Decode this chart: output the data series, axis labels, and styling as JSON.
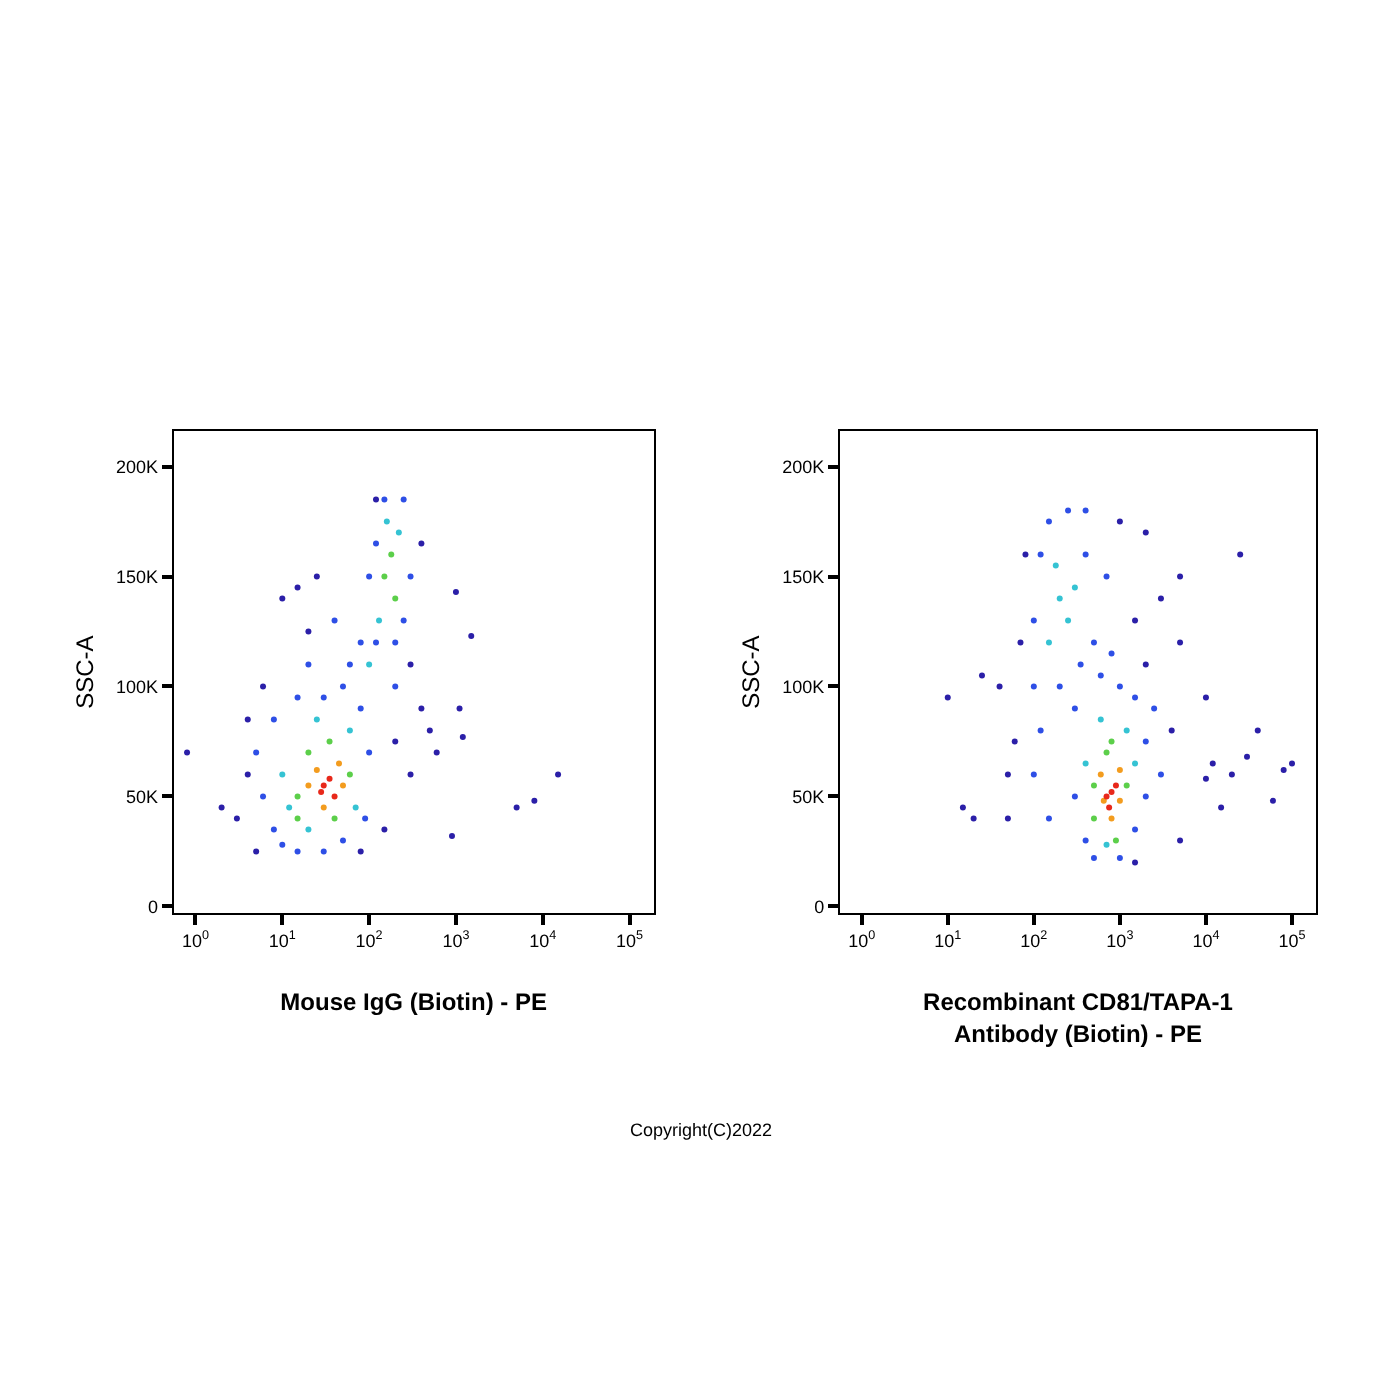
{
  "chart_data": [
    {
      "type": "scatter",
      "xlabel": "Mouse IgG (Biotin) - PE",
      "ylabel": "SSC-A",
      "log": "x",
      "marker": "circle",
      "xlim": [
        0.56,
        190000
      ],
      "ylim": [
        -3000,
        216000
      ],
      "xticks": [
        {
          "value": 1,
          "label": "10$^{0}$"
        },
        {
          "value": 10,
          "label": "10$^{1}$"
        },
        {
          "value": 100,
          "label": "10$^{2}$"
        },
        {
          "value": 1000,
          "label": "10$^{3}$"
        },
        {
          "value": 10000,
          "label": "10$^{4}$"
        },
        {
          "value": 100000,
          "label": "10$^{5}$"
        }
      ],
      "yticks": [
        0,
        {
          "value": 50000,
          "label": "50K"
        },
        {
          "value": 100000,
          "label": "100K"
        },
        {
          "value": 150000,
          "label": "150K"
        },
        {
          "value": 200000,
          "label": "200K"
        }
      ],
      "x": [
        3,
        4,
        2,
        4,
        6,
        10,
        15,
        25,
        20,
        120,
        400,
        300,
        400,
        500,
        600,
        200,
        300,
        150,
        80,
        5,
        1000,
        1500,
        1100,
        1200,
        900,
        5000,
        8000,
        15000,
        0.8,
        6,
        5,
        8,
        8,
        15,
        30,
        50,
        80,
        100,
        90,
        50,
        30,
        15,
        10,
        120,
        250,
        100,
        150,
        250,
        200,
        80,
        60,
        120,
        300,
        200,
        20,
        40,
        10,
        12,
        60,
        25,
        70,
        20,
        130,
        220,
        160,
        100,
        15,
        20,
        35,
        60,
        15,
        40,
        150,
        180,
        200,
        25,
        45,
        30,
        20,
        50,
        30,
        35,
        28,
        40
      ],
      "values": [
        40000,
        85000,
        45000,
        60000,
        100000,
        140000,
        145000,
        150000,
        125000,
        185000,
        165000,
        110000,
        90000,
        80000,
        70000,
        75000,
        60000,
        35000,
        25000,
        25000,
        143000,
        123000,
        90000,
        77000,
        32000,
        45000,
        48000,
        60000,
        70000,
        50000,
        70000,
        35000,
        85000,
        95000,
        95000,
        100000,
        90000,
        70000,
        40000,
        30000,
        25000,
        25000,
        28000,
        120000,
        130000,
        150000,
        185000,
        185000,
        100000,
        120000,
        110000,
        165000,
        150000,
        120000,
        110000,
        130000,
        60000,
        45000,
        80000,
        85000,
        45000,
        35000,
        130000,
        170000,
        175000,
        110000,
        50000,
        70000,
        75000,
        60000,
        40000,
        40000,
        150000,
        160000,
        140000,
        62000,
        65000,
        45000,
        55000,
        55000,
        55000,
        58000,
        52000,
        50000
      ],
      "colors": [
        "#2b1fa8",
        "#2b1fa8",
        "#2b1fa8",
        "#2b1fa8",
        "#2b1fa8",
        "#2b1fa8",
        "#2b1fa8",
        "#2b1fa8",
        "#2b1fa8",
        "#2b1fa8",
        "#2b1fa8",
        "#2b1fa8",
        "#2b1fa8",
        "#2b1fa8",
        "#2b1fa8",
        "#2b1fa8",
        "#2b1fa8",
        "#2b1fa8",
        "#2b1fa8",
        "#2b1fa8",
        "#2b1fa8",
        "#2b1fa8",
        "#2b1fa8",
        "#2b1fa8",
        "#2b1fa8",
        "#2b1fa8",
        "#2b1fa8",
        "#2b1fa8",
        "#2b1fa8",
        "#2e4fe6",
        "#2e4fe6",
        "#2e4fe6",
        "#2e4fe6",
        "#2e4fe6",
        "#2e4fe6",
        "#2e4fe6",
        "#2e4fe6",
        "#2e4fe6",
        "#2e4fe6",
        "#2e4fe6",
        "#2e4fe6",
        "#2e4fe6",
        "#2e4fe6",
        "#2e4fe6",
        "#2e4fe6",
        "#2e4fe6",
        "#2e4fe6",
        "#2e4fe6",
        "#2e4fe6",
        "#2e4fe6",
        "#2e4fe6",
        "#2e4fe6",
        "#2e4fe6",
        "#2e4fe6",
        "#2e4fe6",
        "#2e4fe6",
        "#35c3d3",
        "#35c3d3",
        "#35c3d3",
        "#35c3d3",
        "#35c3d3",
        "#35c3d3",
        "#35c3d3",
        "#35c3d3",
        "#35c3d3",
        "#35c3d3",
        "#5ccf4a",
        "#5ccf4a",
        "#5ccf4a",
        "#5ccf4a",
        "#5ccf4a",
        "#5ccf4a",
        "#5ccf4a",
        "#5ccf4a",
        "#5ccf4a",
        "#f39c1e",
        "#f39c1e",
        "#f39c1e",
        "#f39c1e",
        "#f39c1e",
        "#e8281a",
        "#e8281a",
        "#e8281a",
        "#e8281a"
      ]
    },
    {
      "type": "scatter",
      "xlabel": "Recombinant CD81/TAPA-1\nAntibody (Biotin) - PE",
      "ylabel": "SSC-A",
      "log": "x",
      "marker": "circle",
      "xlim": [
        0.56,
        190000
      ],
      "ylim": [
        -3000,
        216000
      ],
      "xticks": [
        {
          "value": 1,
          "label": "10$^{0}$"
        },
        {
          "value": 10,
          "label": "10$^{1}$"
        },
        {
          "value": 100,
          "label": "10$^{2}$"
        },
        {
          "value": 1000,
          "label": "10$^{3}$"
        },
        {
          "value": 10000,
          "label": "10$^{4}$"
        },
        {
          "value": 100000,
          "label": "10$^{5}$"
        }
      ],
      "yticks": [
        0,
        {
          "value": 50000,
          "label": "50K"
        },
        {
          "value": 100000,
          "label": "100K"
        },
        {
          "value": 150000,
          "label": "150K"
        },
        {
          "value": 200000,
          "label": "200K"
        }
      ],
      "annotations": [
        "Copyright(C)2022"
      ],
      "x": [
        15,
        20,
        10,
        25,
        10000,
        12000,
        20000,
        25000,
        40000,
        60000,
        80000,
        100000,
        15000,
        10000,
        30000,
        60,
        50,
        40,
        80,
        70,
        50,
        1500,
        2000,
        3000,
        5000,
        5000,
        4000,
        5000,
        2000,
        1000,
        1500,
        300,
        2000,
        400,
        1500,
        500,
        1000,
        2000,
        1500,
        300,
        100,
        120,
        150,
        250,
        400,
        500,
        350,
        200,
        100,
        700,
        400,
        600,
        800,
        1000,
        2500,
        3000,
        100,
        150,
        120,
        400,
        1500,
        600,
        1200,
        700,
        200,
        250,
        180,
        300,
        150,
        500,
        700,
        1200,
        500,
        900,
        800,
        600,
        1000,
        800,
        650,
        1000,
        800,
        700,
        900,
        750
      ],
      "values": [
        45000,
        40000,
        95000,
        105000,
        95000,
        65000,
        60000,
        160000,
        80000,
        48000,
        62000,
        65000,
        45000,
        58000,
        68000,
        75000,
        60000,
        100000,
        160000,
        120000,
        40000,
        130000,
        110000,
        140000,
        150000,
        120000,
        80000,
        30000,
        170000,
        175000,
        20000,
        50000,
        50000,
        30000,
        35000,
        22000,
        22000,
        75000,
        95000,
        90000,
        130000,
        160000,
        175000,
        180000,
        160000,
        120000,
        110000,
        100000,
        100000,
        150000,
        180000,
        105000,
        115000,
        100000,
        90000,
        60000,
        60000,
        40000,
        80000,
        65000,
        65000,
        85000,
        80000,
        28000,
        140000,
        130000,
        155000,
        145000,
        120000,
        55000,
        70000,
        55000,
        40000,
        30000,
        75000,
        60000,
        62000,
        40000,
        48000,
        48000,
        52000,
        50000,
        55000,
        45000
      ],
      "colors": [
        "#2b1fa8",
        "#2b1fa8",
        "#2b1fa8",
        "#2b1fa8",
        "#2b1fa8",
        "#2b1fa8",
        "#2b1fa8",
        "#2b1fa8",
        "#2b1fa8",
        "#2b1fa8",
        "#2b1fa8",
        "#2b1fa8",
        "#2b1fa8",
        "#2b1fa8",
        "#2b1fa8",
        "#2b1fa8",
        "#2b1fa8",
        "#2b1fa8",
        "#2b1fa8",
        "#2b1fa8",
        "#2b1fa8",
        "#2b1fa8",
        "#2b1fa8",
        "#2b1fa8",
        "#2b1fa8",
        "#2b1fa8",
        "#2b1fa8",
        "#2b1fa8",
        "#2b1fa8",
        "#2b1fa8",
        "#2b1fa8",
        "#2e4fe6",
        "#2e4fe6",
        "#2e4fe6",
        "#2e4fe6",
        "#2e4fe6",
        "#2e4fe6",
        "#2e4fe6",
        "#2e4fe6",
        "#2e4fe6",
        "#2e4fe6",
        "#2e4fe6",
        "#2e4fe6",
        "#2e4fe6",
        "#2e4fe6",
        "#2e4fe6",
        "#2e4fe6",
        "#2e4fe6",
        "#2e4fe6",
        "#2e4fe6",
        "#2e4fe6",
        "#2e4fe6",
        "#2e4fe6",
        "#2e4fe6",
        "#2e4fe6",
        "#2e4fe6",
        "#2e4fe6",
        "#2e4fe6",
        "#2e4fe6",
        "#35c3d3",
        "#35c3d3",
        "#35c3d3",
        "#35c3d3",
        "#35c3d3",
        "#35c3d3",
        "#35c3d3",
        "#35c3d3",
        "#35c3d3",
        "#35c3d3",
        "#5ccf4a",
        "#5ccf4a",
        "#5ccf4a",
        "#5ccf4a",
        "#5ccf4a",
        "#5ccf4a",
        "#f39c1e",
        "#f39c1e",
        "#f39c1e",
        "#f39c1e",
        "#f39c1e",
        "#e8281a",
        "#e8281a",
        "#e8281a",
        "#e8281a"
      ]
    }
  ]
}
